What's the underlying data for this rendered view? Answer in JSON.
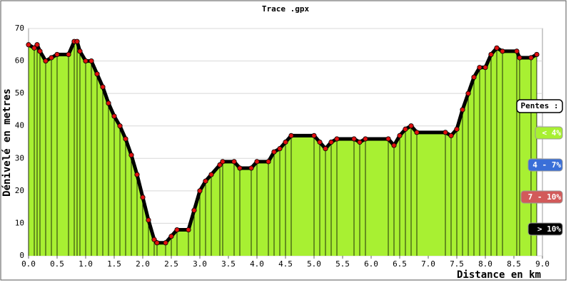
{
  "chart_data": {
    "type": "area",
    "title": "Trace .gpx",
    "x_label": "Distance en km",
    "y_label": "Dénivelé en metres",
    "x": [
      0.0,
      0.1,
      0.15,
      0.2,
      0.3,
      0.4,
      0.5,
      0.7,
      0.8,
      0.85,
      0.9,
      1.0,
      1.1,
      1.2,
      1.3,
      1.4,
      1.5,
      1.6,
      1.7,
      1.8,
      1.9,
      2.0,
      2.1,
      2.2,
      2.25,
      2.4,
      2.5,
      2.6,
      2.8,
      2.9,
      3.0,
      3.1,
      3.2,
      3.35,
      3.4,
      3.6,
      3.7,
      3.9,
      4.0,
      4.2,
      4.3,
      4.4,
      4.5,
      4.6,
      5.0,
      5.1,
      5.2,
      5.3,
      5.4,
      5.7,
      5.8,
      5.9,
      6.3,
      6.4,
      6.5,
      6.6,
      6.7,
      6.8,
      7.3,
      7.4,
      7.5,
      7.6,
      7.7,
      7.8,
      7.9,
      8.0,
      8.1,
      8.2,
      8.3,
      8.55,
      8.6,
      8.8,
      8.9
    ],
    "series": [
      {
        "color": "#a8f032",
        "line_color": "#000000",
        "marker_color": "#e01010",
        "values": [
          65,
          64,
          65,
          63,
          60,
          61,
          62,
          62,
          66,
          66,
          63,
          60,
          60,
          56,
          52,
          47,
          43,
          40,
          36,
          31,
          25,
          18,
          11,
          5,
          4,
          4,
          6,
          8,
          8,
          14,
          20,
          23,
          25,
          28,
          29,
          29,
          27,
          27,
          29,
          29,
          32,
          33,
          35,
          37,
          37,
          35,
          33,
          35,
          36,
          36,
          35,
          36,
          36,
          34,
          37,
          39,
          40,
          38,
          38,
          37,
          39,
          45,
          50,
          55,
          58,
          58,
          62,
          64,
          63,
          63,
          61,
          61,
          62
        ]
      }
    ],
    "xlim": [
      0,
      9
    ],
    "ylim": [
      0,
      70
    ],
    "xticks": [
      {
        "value": 0,
        "label": "0.0"
      },
      {
        "value": 0.5,
        "label": "0.5"
      },
      {
        "value": 1,
        "label": "1.0"
      },
      {
        "value": 1.5,
        "label": "1.5"
      },
      {
        "value": 2,
        "label": "2.0"
      },
      {
        "value": 2.5,
        "label": "2.5"
      },
      {
        "value": 3,
        "label": "3.0"
      },
      {
        "value": 3.5,
        "label": "3.5"
      },
      {
        "value": 4,
        "label": "4.0"
      },
      {
        "value": 4.5,
        "label": "4.5"
      },
      {
        "value": 5,
        "label": "5.0"
      },
      {
        "value": 5.5,
        "label": "5.5"
      },
      {
        "value": 6,
        "label": "6.0"
      },
      {
        "value": 6.5,
        "label": "6.5"
      },
      {
        "value": 7,
        "label": "7.0"
      },
      {
        "value": 7.5,
        "label": "7.5"
      },
      {
        "value": 8,
        "label": "8.0"
      },
      {
        "value": 8.5,
        "label": "8.5"
      },
      {
        "value": 9,
        "label": "9.0"
      }
    ],
    "yticks": [
      0,
      10,
      20,
      30,
      40,
      50,
      60,
      70
    ],
    "grid": true,
    "legend": {
      "title": "Pentes :",
      "items": [
        {
          "label": "< 4%",
          "color": "#a8f032"
        },
        {
          "label": "4 - 7%",
          "color": "#3a6fd8"
        },
        {
          "label": "7 - 10%",
          "color": "#d25a5a"
        },
        {
          "label": "> 10%",
          "color": "#000000"
        }
      ]
    }
  }
}
